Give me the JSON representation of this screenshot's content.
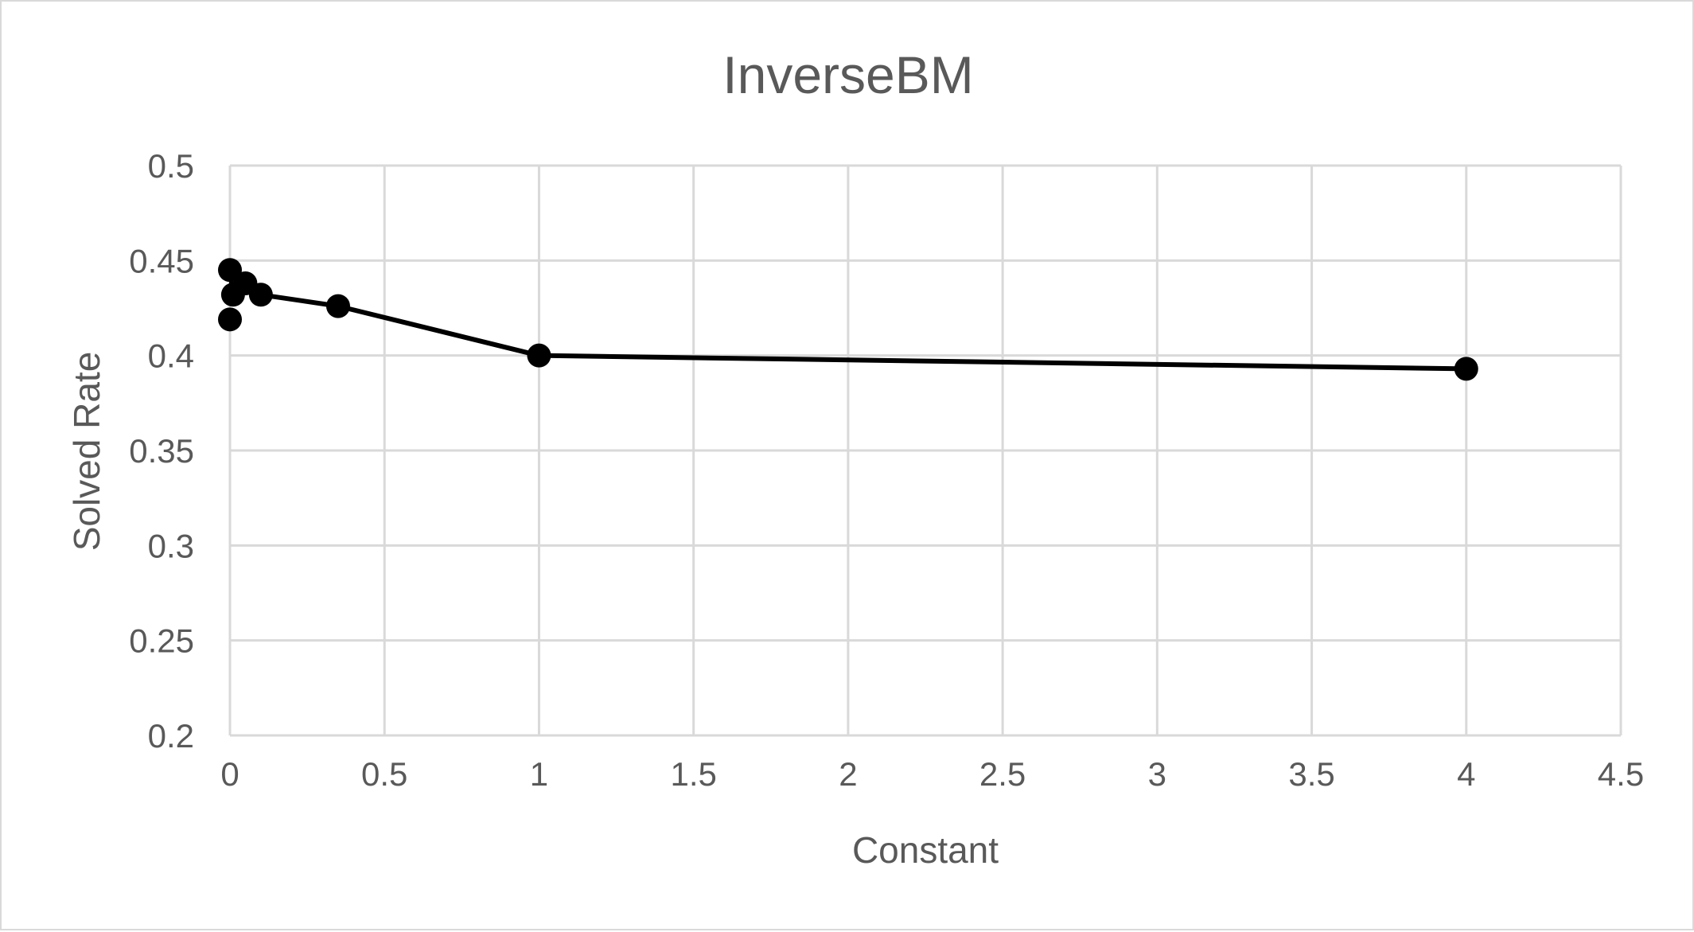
{
  "chart_data": {
    "type": "scatter",
    "title": "InverseBM",
    "xlabel": "Constant",
    "ylabel": "Solved Rate",
    "xlim": [
      0,
      4.5
    ],
    "ylim": [
      0.2,
      0.5
    ],
    "x_ticks": [
      "0",
      "0.5",
      "1",
      "1.5",
      "2",
      "2.5",
      "3",
      "3.5",
      "4",
      "4.5"
    ],
    "y_ticks": [
      "0.2",
      "0.25",
      "0.3",
      "0.35",
      "0.4",
      "0.45",
      "0.5"
    ],
    "grid": true,
    "legend": "none",
    "line_color": "#000000",
    "series": [
      {
        "x": [
          0,
          0.01,
          0.05,
          0.1,
          0.35,
          1,
          4
        ],
        "y": [
          0.445,
          0.432,
          0.438,
          0.432,
          0.426,
          0.4,
          0.393
        ]
      }
    ],
    "extra_points": [
      {
        "x": 0,
        "y": 0.419
      }
    ]
  }
}
